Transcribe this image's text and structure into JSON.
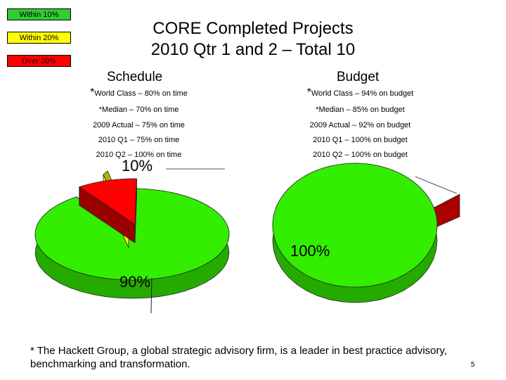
{
  "legend": [
    {
      "label": "Within 10%",
      "color": "#33cc33"
    },
    {
      "label": "Within 20%",
      "color": "#ffff00"
    },
    {
      "label": "Over 20%",
      "color": "#ff0000"
    }
  ],
  "title": {
    "line1": "CORE Completed Projects",
    "line2": "2010 Qtr 1 and 2 – Total 10"
  },
  "schedule": {
    "heading": "Schedule",
    "world_class_ast": "*",
    "world_class": "World Class – 80% on time",
    "median": "*Median – 70% on time",
    "actual_2009": "2009 Actual – 75% on time",
    "q1_2010": "2010 Q1 – 75% on time",
    "q2_2010": "2010 Q2 – 100% on time"
  },
  "budget": {
    "heading": "Budget",
    "world_class_ast": "*",
    "world_class": "World Class – 94% on budget",
    "median": "*Median – 85% on budget",
    "actual_2009": "2009 Actual – 92% on budget",
    "q1_2010": "2010 Q1 – 100% on budget",
    "q2_2010": "2010 Q2 – 100% on budget"
  },
  "chart_data": [
    {
      "type": "pie",
      "categories": [
        "Within 10%",
        "Within 20%",
        "Over 20%"
      ],
      "values": [
        90,
        0,
        10
      ],
      "data_labels": [
        "90%",
        "",
        "10%"
      ],
      "colors": [
        "#33ee00",
        "#ffff00",
        "#ff0000"
      ]
    },
    {
      "type": "pie",
      "categories": [
        "Within 10%",
        "Within 20%",
        "Over 20%"
      ],
      "values": [
        100,
        0,
        0
      ],
      "data_labels": [
        "100%",
        "",
        ""
      ],
      "colors": [
        "#33ee00",
        "#ffff00",
        "#aa0000"
      ]
    }
  ],
  "footnote": "* The Hackett Group, a global strategic advisory firm, is a leader in best practice advisory, benchmarking and transformation.",
  "page_number": "5"
}
